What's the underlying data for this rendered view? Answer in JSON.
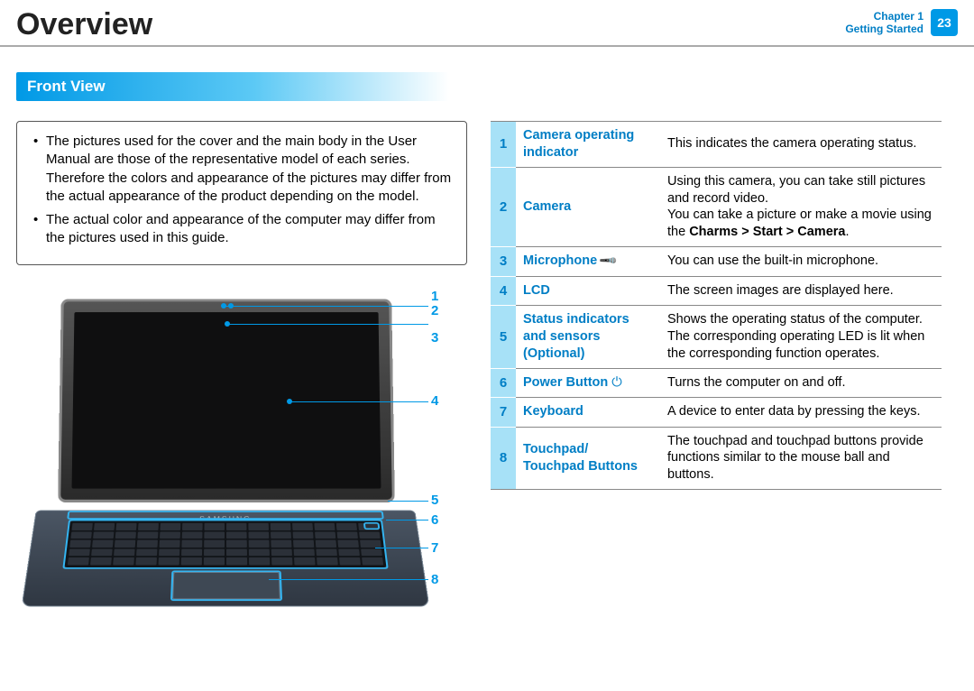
{
  "header": {
    "title": "Overview",
    "chapter_line1": "Chapter 1",
    "chapter_line2": "Getting Started",
    "page_number": "23",
    "accent_color": "#0099e6",
    "chapter_text_color": "#007ec5"
  },
  "section_heading": "Front View",
  "notes": [
    "The pictures used for the cover and the main body in the User Manual are those of the representative model of each series. Therefore the colors and appearance of the pictures may differ from the actual appearance of the product depending on the model.",
    "The actual color and appearance of the computer may differ from the pictures used in this guide."
  ],
  "diagram": {
    "brand": "SAMSUNG",
    "callouts": [
      "1",
      "2",
      "3",
      "4",
      "5",
      "6",
      "7",
      "8"
    ],
    "callout_color": "#0099e6",
    "highlight_color": "#33b5f2"
  },
  "parts": [
    {
      "num": "1",
      "name": "Camera operating indicator",
      "desc_html": "This indicates the camera operating status."
    },
    {
      "num": "2",
      "name": "Camera",
      "desc_html": "Using this camera, you can take still pictures and record video.<br>You can take a picture or make a movie using the <span class=\"desc-strong\">Charms &gt; Start &gt; Camera</span>."
    },
    {
      "num": "3",
      "name": "Microphone",
      "icon": "🎤",
      "desc_html": "You can use the built-in microphone."
    },
    {
      "num": "4",
      "name": "LCD",
      "desc_html": "The screen images are displayed here."
    },
    {
      "num": "5",
      "name": "Status indicators and sensors (Optional)",
      "desc_html": "Shows the operating status of the computer.<br>The corresponding operating LED is lit when the corresponding function operates."
    },
    {
      "num": "6",
      "name": "Power Button",
      "icon": "⏻",
      "desc_html": "Turns the computer on and off."
    },
    {
      "num": "7",
      "name": "Keyboard",
      "desc_html": "A device to enter data by pressing the keys."
    },
    {
      "num": "8",
      "name": "Touchpad/ Touchpad Buttons",
      "desc_html": "The touchpad and touchpad buttons provide functions similar to the mouse ball and buttons."
    }
  ],
  "style": {
    "table_label_color": "#007ec5",
    "table_num_bg": "#a7e1f7",
    "table_border": "#888888",
    "body_font_size": 15
  }
}
